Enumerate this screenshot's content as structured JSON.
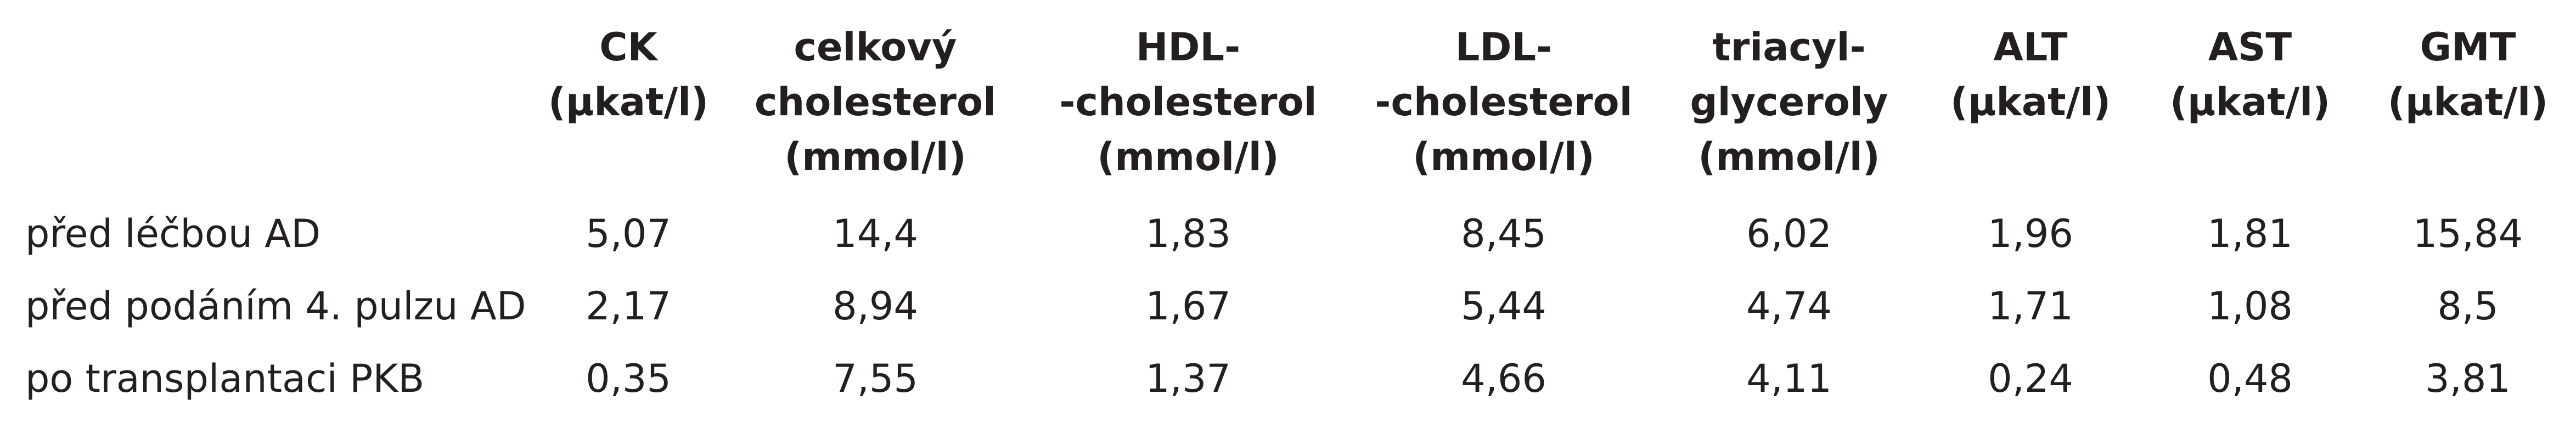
{
  "table": {
    "headers": [
      {
        "lines": [
          "CK",
          "(µkat/l)"
        ]
      },
      {
        "lines": [
          "celkový",
          "cholesterol",
          "(mmol/l)"
        ]
      },
      {
        "lines": [
          "HDL-",
          "-cholesterol",
          "(mmol/l)"
        ]
      },
      {
        "lines": [
          "LDL-",
          "-cholesterol",
          "(mmol/l)"
        ]
      },
      {
        "lines": [
          "triacyl-",
          "glyceroly",
          "(mmol/l)"
        ]
      },
      {
        "lines": [
          "ALT",
          "(µkat/l)"
        ]
      },
      {
        "lines": [
          "AST",
          "(µkat/l)"
        ]
      },
      {
        "lines": [
          "GMT",
          "(µkat/l)"
        ]
      }
    ],
    "rows": [
      {
        "label": "před léčbou AD",
        "values": [
          "5,07",
          "14,4",
          "1,83",
          "8,45",
          "6,02",
          "1,96",
          "1,81",
          "15,84"
        ]
      },
      {
        "label": "před podáním 4. pulzu AD",
        "values": [
          "2,17",
          "8,94",
          "1,67",
          "5,44",
          "4,74",
          "1,71",
          "1,08",
          "8,5"
        ]
      },
      {
        "label": "po transplantaci PKB",
        "values": [
          "0,35",
          "7,55",
          "1,37",
          "4,66",
          "4,11",
          "0,24",
          "0,48",
          "3,81"
        ]
      }
    ]
  }
}
